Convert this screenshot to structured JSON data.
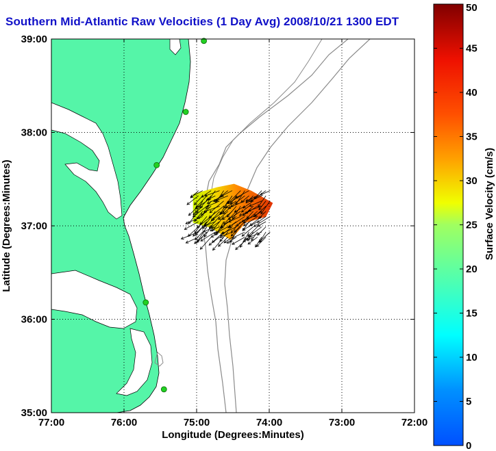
{
  "chart_data": {
    "type": "vector-field-map",
    "title": "Southern Mid-Atlantic Raw Velocities (1 Day Avg) 2008/10/21 1300 EDT",
    "xlabel": "Longitude (Degrees:Minutes)",
    "ylabel": "Latitude (Degrees:Minutes)",
    "xlim": [
      -77,
      -72
    ],
    "ylim": [
      35,
      39
    ],
    "x_ticks": [
      {
        "value": -77,
        "label": "77:00"
      },
      {
        "value": -76,
        "label": "76:00"
      },
      {
        "value": -75,
        "label": "75:00"
      },
      {
        "value": -74,
        "label": "74:00"
      },
      {
        "value": -73,
        "label": "73:00"
      },
      {
        "value": -72,
        "label": "72:00"
      }
    ],
    "y_ticks": [
      {
        "value": 35,
        "label": "35:00"
      },
      {
        "value": 36,
        "label": "36:00"
      },
      {
        "value": 37,
        "label": "37:00"
      },
      {
        "value": 38,
        "label": "38:00"
      },
      {
        "value": 39,
        "label": "39:00"
      }
    ],
    "grid": "dotted",
    "colorbar": {
      "label": "Surface Velocity (cm/s)",
      "range": [
        0,
        50
      ],
      "ticks": [
        0,
        5,
        10,
        15,
        20,
        25,
        30,
        35,
        40,
        45,
        50
      ],
      "colormap": "jet",
      "placement": "right"
    },
    "land_color": "#55f5a8",
    "water_color": "#ffffff",
    "station_color": "#22d022",
    "stations": [
      {
        "lon": -74.9,
        "lat": 38.98
      },
      {
        "lon": -75.15,
        "lat": 38.22
      },
      {
        "lon": -75.55,
        "lat": 37.65
      },
      {
        "lon": -75.7,
        "lat": 36.18
      },
      {
        "lon": -75.45,
        "lat": 35.25
      }
    ],
    "velocity_field": {
      "lon_range": [
        -75.05,
        -73.95
      ],
      "lat_range": [
        36.85,
        37.45
      ],
      "typical_direction": "toward south-southwest",
      "speed_range": [
        20,
        45
      ]
    }
  }
}
